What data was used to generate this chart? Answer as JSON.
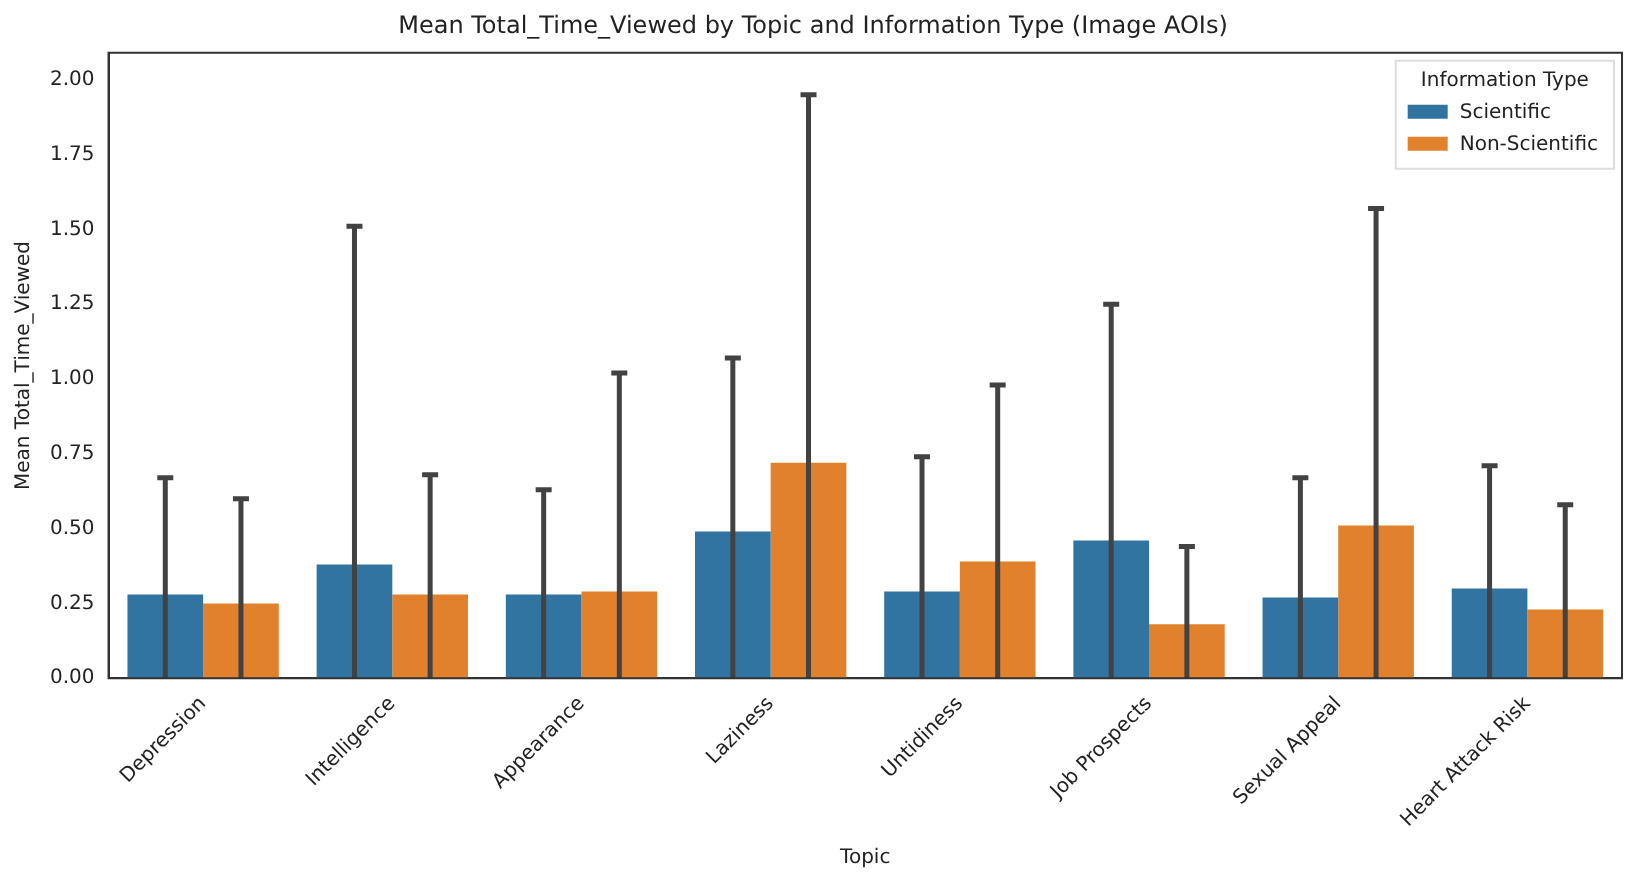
{
  "chart_data": {
    "type": "bar",
    "title": "Mean Total_Time_Viewed by Topic and Information Type (Image AOIs)",
    "xlabel": "Topic",
    "ylabel": "Mean Total_Time_Viewed",
    "legend_title": "Information Type",
    "legend": "top right",
    "categories": [
      "Depression",
      "Intelligence",
      "Appearance",
      "Laziness",
      "Untidiness",
      "Job Prospects",
      "Sexual Appeal",
      "Heart Attack Risk"
    ],
    "series": [
      {
        "name": "Scientific",
        "color": "#3274a1",
        "values": [
          0.28,
          0.38,
          0.28,
          0.49,
          0.29,
          0.46,
          0.27,
          0.3
        ],
        "errors": [
          [
            0,
            0.67
          ],
          [
            0,
            1.51
          ],
          [
            0,
            0.63
          ],
          [
            0,
            1.07
          ],
          [
            0,
            0.74
          ],
          [
            0,
            1.25
          ],
          [
            0,
            0.67
          ],
          [
            0,
            0.71
          ]
        ]
      },
      {
        "name": "Non-Scientific",
        "color": "#e1812c",
        "values": [
          0.25,
          0.28,
          0.29,
          0.72,
          0.39,
          0.18,
          0.51,
          0.23
        ],
        "errors": [
          [
            0,
            0.6
          ],
          [
            0,
            0.68
          ],
          [
            0,
            1.02
          ],
          [
            0,
            1.95
          ],
          [
            0,
            0.98
          ],
          [
            0,
            0.44
          ],
          [
            0,
            1.57
          ],
          [
            0,
            0.58
          ]
        ]
      }
    ],
    "ylim": [
      0,
      2.09
    ],
    "yticks": [
      {
        "value": 0,
        "label": "0.00"
      },
      {
        "value": 0.25,
        "label": "0.25"
      },
      {
        "value": 0.5,
        "label": "0.50"
      },
      {
        "value": 0.75,
        "label": "0.75"
      },
      {
        "value": 1,
        "label": "1.00"
      },
      {
        "value": 1.25,
        "label": "1.25"
      },
      {
        "value": 1.5,
        "label": "1.50"
      },
      {
        "value": 1.75,
        "label": "1.75"
      },
      {
        "value": 2,
        "label": "2.00"
      }
    ],
    "grid": false
  }
}
